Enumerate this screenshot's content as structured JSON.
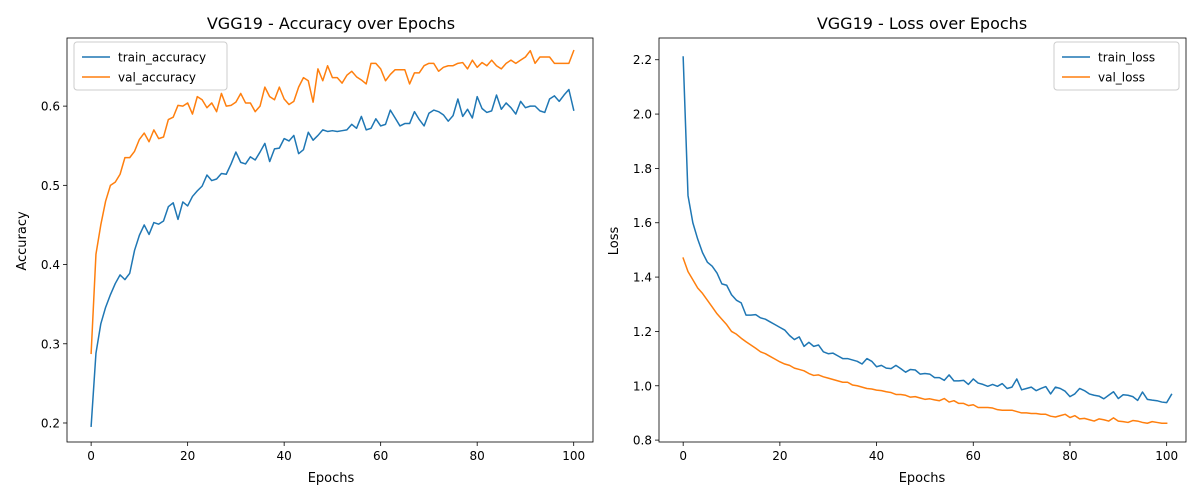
{
  "colors": {
    "train": "#1f77b4",
    "val": "#ff7f0e"
  },
  "chart_data": [
    {
      "type": "line",
      "title": "VGG19 - Accuracy over Epochs",
      "xlabel": "Epochs",
      "ylabel": "Accuracy",
      "xlim": [
        -5,
        104
      ],
      "ylim": [
        0.176,
        0.686
      ],
      "xticks": [
        0,
        20,
        40,
        60,
        80,
        100
      ],
      "yticks": [
        0.2,
        0.3,
        0.4,
        0.5,
        0.6
      ],
      "ytick_labels": [
        "0.2",
        "0.3",
        "0.4",
        "0.5",
        "0.6"
      ],
      "legend_position": "upper-left",
      "grid": false,
      "series": [
        {
          "name": "train_accuracy",
          "color": "#1f77b4",
          "values": [
            0.196,
            0.288,
            0.325,
            0.346,
            0.362,
            0.376,
            0.387,
            0.381,
            0.389,
            0.418,
            0.437,
            0.45,
            0.438,
            0.453,
            0.451,
            0.455,
            0.473,
            0.478,
            0.457,
            0.479,
            0.474,
            0.486,
            0.493,
            0.499,
            0.513,
            0.506,
            0.508,
            0.515,
            0.514,
            0.527,
            0.542,
            0.529,
            0.527,
            0.536,
            0.532,
            0.542,
            0.553,
            0.53,
            0.546,
            0.547,
            0.559,
            0.556,
            0.563,
            0.54,
            0.545,
            0.567,
            0.557,
            0.563,
            0.57,
            0.568,
            0.569,
            0.568,
            0.569,
            0.57,
            0.577,
            0.572,
            0.587,
            0.57,
            0.572,
            0.584,
            0.575,
            0.577,
            0.595,
            0.585,
            0.575,
            0.578,
            0.578,
            0.593,
            0.583,
            0.575,
            0.591,
            0.595,
            0.593,
            0.589,
            0.581,
            0.588,
            0.609,
            0.587,
            0.596,
            0.585,
            0.612,
            0.597,
            0.592,
            0.594,
            0.614,
            0.596,
            0.604,
            0.598,
            0.59,
            0.606,
            0.598,
            0.6,
            0.6,
            0.594,
            0.592,
            0.609,
            0.613,
            0.606,
            0.614,
            0.621,
            0.595
          ]
        },
        {
          "name": "val_accuracy",
          "color": "#ff7f0e",
          "values": [
            0.288,
            0.413,
            0.45,
            0.48,
            0.5,
            0.504,
            0.514,
            0.535,
            0.535,
            0.543,
            0.558,
            0.566,
            0.555,
            0.57,
            0.559,
            0.561,
            0.583,
            0.586,
            0.601,
            0.6,
            0.604,
            0.59,
            0.612,
            0.608,
            0.598,
            0.604,
            0.593,
            0.616,
            0.6,
            0.601,
            0.605,
            0.616,
            0.604,
            0.604,
            0.593,
            0.6,
            0.624,
            0.612,
            0.608,
            0.624,
            0.609,
            0.602,
            0.606,
            0.624,
            0.636,
            0.632,
            0.605,
            0.647,
            0.632,
            0.651,
            0.636,
            0.636,
            0.629,
            0.639,
            0.644,
            0.637,
            0.633,
            0.628,
            0.654,
            0.654,
            0.647,
            0.632,
            0.64,
            0.646,
            0.646,
            0.646,
            0.628,
            0.642,
            0.642,
            0.651,
            0.654,
            0.654,
            0.644,
            0.649,
            0.651,
            0.651,
            0.654,
            0.655,
            0.647,
            0.658,
            0.649,
            0.655,
            0.651,
            0.658,
            0.651,
            0.647,
            0.654,
            0.658,
            0.654,
            0.658,
            0.662,
            0.67,
            0.654,
            0.662,
            0.662,
            0.662,
            0.654,
            0.654,
            0.654,
            0.654,
            0.67
          ]
        }
      ]
    },
    {
      "type": "line",
      "title": "VGG19 - Loss over Epochs",
      "xlabel": "Epochs",
      "ylabel": "Loss",
      "xlim": [
        -5,
        104
      ],
      "ylim": [
        0.793,
        2.28
      ],
      "xticks": [
        0,
        20,
        40,
        60,
        80,
        100
      ],
      "yticks": [
        0.8,
        1.0,
        1.2,
        1.4,
        1.6,
        1.8,
        2.0,
        2.2
      ],
      "ytick_labels": [
        "0.8",
        "1.0",
        "1.2",
        "1.4",
        "1.6",
        "1.8",
        "2.0",
        "2.2"
      ],
      "legend_position": "upper-right",
      "grid": false,
      "series": [
        {
          "name": "train_loss",
          "color": "#1f77b4",
          "values": [
            2.21,
            1.7,
            1.6,
            1.54,
            1.49,
            1.455,
            1.44,
            1.415,
            1.375,
            1.37,
            1.335,
            1.315,
            1.305,
            1.26,
            1.26,
            1.262,
            1.25,
            1.245,
            1.235,
            1.225,
            1.215,
            1.205,
            1.185,
            1.17,
            1.18,
            1.145,
            1.16,
            1.145,
            1.15,
            1.125,
            1.118,
            1.12,
            1.11,
            1.1,
            1.1,
            1.095,
            1.09,
            1.08,
            1.1,
            1.09,
            1.07,
            1.075,
            1.065,
            1.063,
            1.075,
            1.063,
            1.05,
            1.06,
            1.058,
            1.043,
            1.045,
            1.043,
            1.03,
            1.03,
            1.02,
            1.04,
            1.018,
            1.018,
            1.02,
            1.005,
            1.025,
            1.01,
            1.005,
            0.998,
            1.005,
            0.998,
            1.008,
            0.99,
            0.995,
            1.025,
            0.985,
            0.99,
            0.995,
            0.982,
            0.99,
            0.997,
            0.97,
            0.995,
            0.99,
            0.98,
            0.96,
            0.97,
            0.99,
            0.982,
            0.97,
            0.965,
            0.962,
            0.952,
            0.965,
            0.978,
            0.953,
            0.967,
            0.965,
            0.96,
            0.946,
            0.977,
            0.95,
            0.947,
            0.945,
            0.94,
            0.938,
            0.968
          ]
        },
        {
          "name": "val_loss",
          "color": "#ff7f0e",
          "values": [
            1.47,
            1.42,
            1.39,
            1.36,
            1.34,
            1.315,
            1.29,
            1.265,
            1.245,
            1.225,
            1.2,
            1.19,
            1.175,
            1.162,
            1.15,
            1.138,
            1.125,
            1.118,
            1.108,
            1.098,
            1.088,
            1.08,
            1.075,
            1.065,
            1.06,
            1.055,
            1.045,
            1.038,
            1.04,
            1.033,
            1.028,
            1.023,
            1.018,
            1.013,
            1.013,
            1.003,
            1.0,
            0.995,
            0.99,
            0.988,
            0.984,
            0.982,
            0.978,
            0.975,
            0.968,
            0.968,
            0.965,
            0.958,
            0.96,
            0.955,
            0.95,
            0.952,
            0.948,
            0.945,
            0.953,
            0.94,
            0.945,
            0.935,
            0.935,
            0.927,
            0.93,
            0.92,
            0.92,
            0.92,
            0.918,
            0.912,
            0.91,
            0.91,
            0.91,
            0.905,
            0.9,
            0.9,
            0.898,
            0.898,
            0.895,
            0.895,
            0.888,
            0.885,
            0.89,
            0.895,
            0.883,
            0.89,
            0.878,
            0.88,
            0.875,
            0.87,
            0.878,
            0.875,
            0.87,
            0.882,
            0.87,
            0.868,
            0.865,
            0.872,
            0.87,
            0.865,
            0.862,
            0.868,
            0.865,
            0.862,
            0.862
          ]
        }
      ]
    }
  ]
}
